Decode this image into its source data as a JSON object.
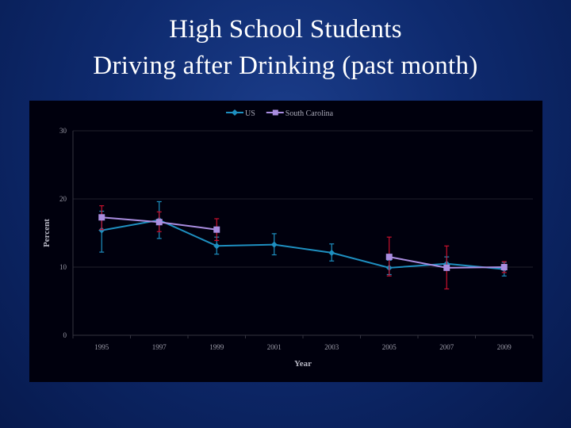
{
  "slide": {
    "title_line1": "High School Students",
    "title_line2": "Driving after Drinking (past month)"
  },
  "chart_data": {
    "type": "line",
    "x": [
      "1995",
      "1997",
      "1999",
      "2001",
      "2003",
      "2005",
      "2007",
      "2009"
    ],
    "xlabel": "Year",
    "ylabel": "Percent",
    "ylim": [
      0,
      30
    ],
    "yticks": [
      "0",
      "10",
      "20",
      "30"
    ],
    "grid": true,
    "legend_position": "top",
    "series": [
      {
        "name": "US",
        "color": "#1e8fc0",
        "marker": "diamond",
        "values": [
          15.4,
          16.9,
          13.1,
          13.3,
          12.1,
          9.9,
          10.5,
          9.7
        ],
        "errors": [
          [
            12.2,
            18.2
          ],
          [
            14.2,
            19.6
          ],
          [
            11.9,
            14.4
          ],
          [
            11.8,
            14.9
          ],
          [
            10.9,
            13.4
          ],
          [
            8.9,
            11.0
          ],
          [
            9.6,
            11.5
          ],
          [
            8.7,
            10.7
          ]
        ],
        "error_color": "#1e8fc0"
      },
      {
        "name": "South Carolina",
        "color": "#a98de0",
        "marker": "square",
        "values": [
          17.3,
          16.6,
          15.5,
          null,
          null,
          11.5,
          9.9,
          10.0
        ],
        "errors": [
          [
            15.5,
            19.0
          ],
          [
            15.2,
            18.1
          ],
          [
            13.9,
            17.1
          ],
          null,
          null,
          [
            8.7,
            14.4
          ],
          [
            6.8,
            13.1
          ],
          [
            9.2,
            10.8
          ]
        ],
        "error_color": "#c8102e"
      }
    ]
  }
}
